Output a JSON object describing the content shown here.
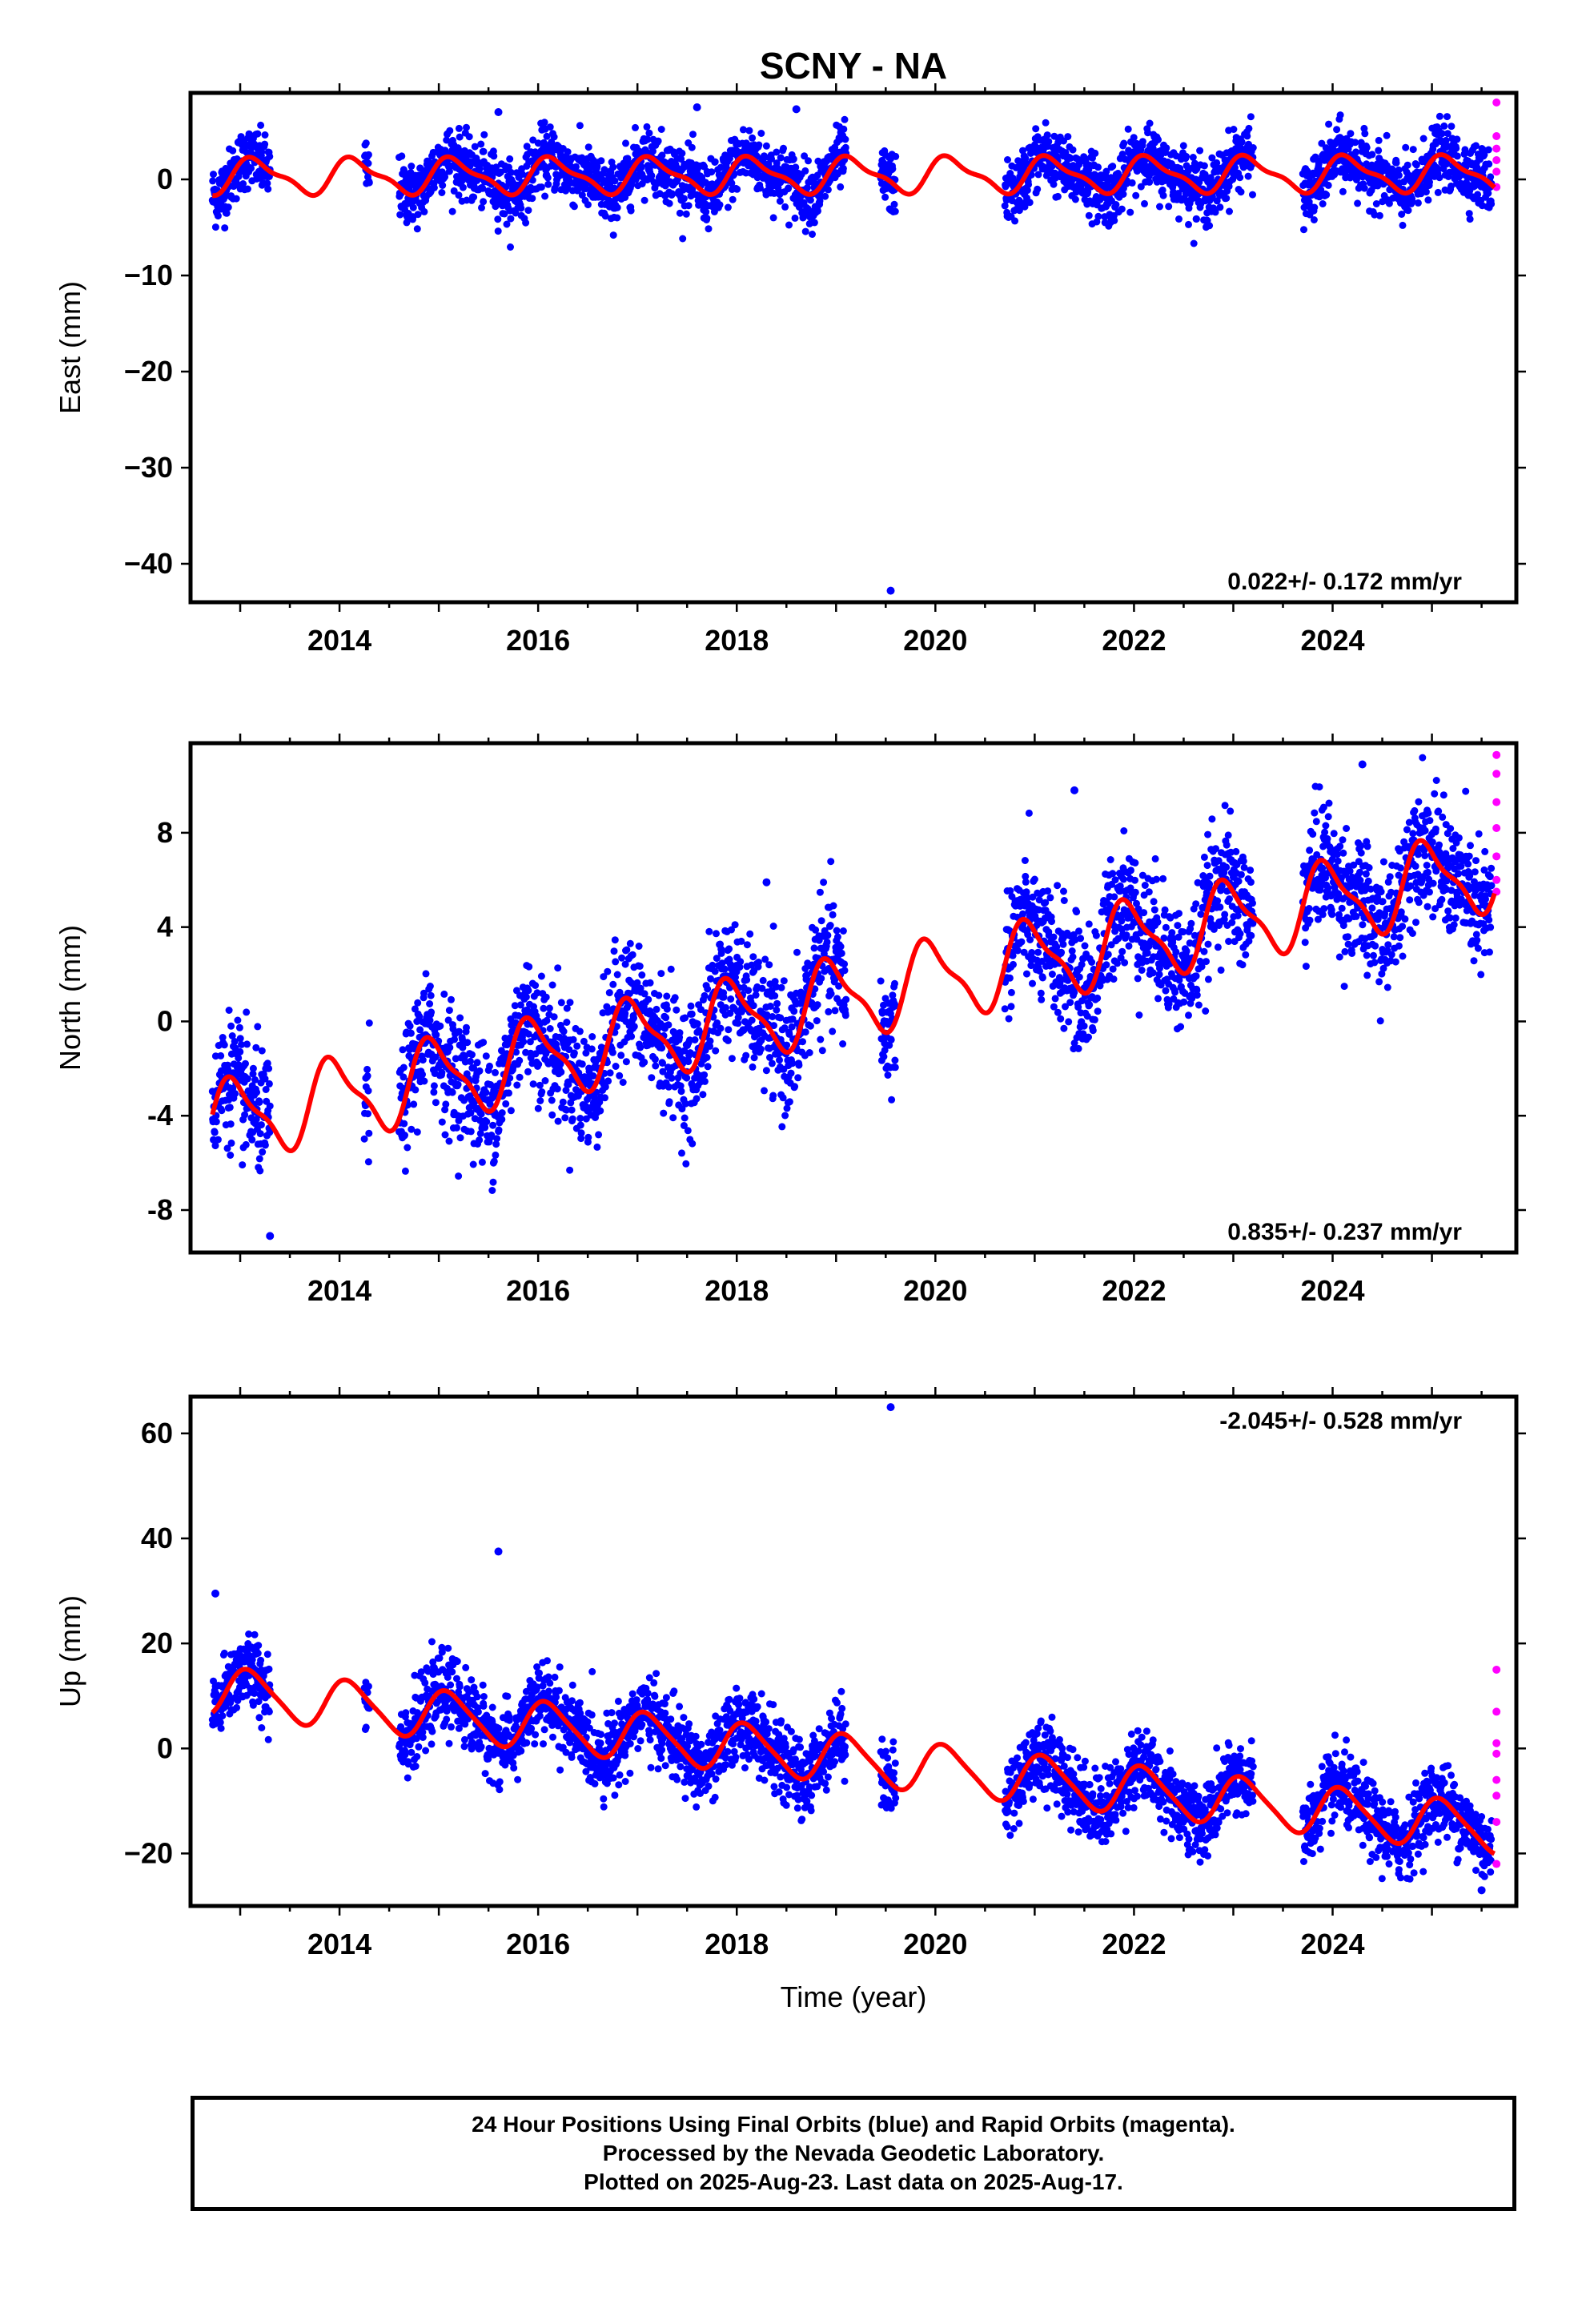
{
  "title": "SCNY - NA",
  "chart_data": [
    {
      "type": "scatter",
      "ylabel": "East (mm)",
      "xlabel": "",
      "xlim": [
        2012.5,
        2025.85
      ],
      "ylim": [
        -44,
        9
      ],
      "xticks": [
        2014,
        2016,
        2018,
        2020,
        2022,
        2024
      ],
      "xtick_labels": [
        "2014",
        "2016",
        "2018",
        "2020",
        "2022",
        "2024"
      ],
      "yticks": [
        0,
        -10,
        -20,
        -30,
        -40
      ],
      "ytick_labels": [
        "0",
        "−10",
        "−20",
        "−30",
        "−40"
      ],
      "rate_label": "0.022+/- 0.172 mm/yr",
      "rate_position": "bottom-right",
      "model": {
        "mean": 0.3,
        "trend": 0.022,
        "annual": 1.7,
        "semiannual": 0.6,
        "phase": 0.55
      },
      "noise": 1.6,
      "data_segments": [
        [
          2012.72,
          2013.3
        ],
        [
          2014.25,
          2014.3
        ],
        [
          2014.6,
          2019.1
        ],
        [
          2019.45,
          2019.6
        ],
        [
          2020.7,
          2023.2
        ],
        [
          2023.7,
          2025.6
        ]
      ],
      "outliers": [
        [
          2019.55,
          -42.8
        ],
        [
          2015.6,
          7.0
        ],
        [
          2017.6,
          7.5
        ],
        [
          2018.6,
          7.3
        ]
      ],
      "rapid_orbit_points": [
        [
          2025.65,
          8
        ],
        [
          2025.65,
          4.5
        ],
        [
          2025.65,
          3.2
        ],
        [
          2025.65,
          2.0
        ],
        [
          2025.65,
          0.8
        ],
        [
          2025.65,
          -0.8
        ]
      ],
      "series": [
        {
          "name": "Final Orbits",
          "color": "#0000ff"
        },
        {
          "name": "Rapid Orbits",
          "color": "#ff00ff"
        },
        {
          "name": "model",
          "color": "#ff0000"
        }
      ]
    },
    {
      "type": "scatter",
      "ylabel": "North (mm)",
      "xlabel": "",
      "xlim": [
        2012.5,
        2025.85
      ],
      "ylim": [
        -9.8,
        11.8
      ],
      "xticks": [
        2014,
        2016,
        2018,
        2020,
        2022,
        2024
      ],
      "xtick_labels": [
        "2014",
        "2016",
        "2018",
        "2020",
        "2022",
        "2024"
      ],
      "yticks": [
        8,
        4,
        0,
        -4,
        -8
      ],
      "ytick_labels": [
        "8",
        "4",
        "0",
        "-4",
        "-8"
      ],
      "rate_label": "0.835+/- 0.237 mm/yr",
      "rate_position": "bottom-right",
      "model": {
        "mean": -4.5,
        "trend": 0.835,
        "annual": 1.6,
        "semiannual": 0.5,
        "phase": 1.9
      },
      "noise": 1.3,
      "data_segments": [
        [
          2012.72,
          2013.3
        ],
        [
          2014.25,
          2014.3
        ],
        [
          2014.6,
          2019.1
        ],
        [
          2019.45,
          2019.6
        ],
        [
          2020.7,
          2023.2
        ],
        [
          2023.7,
          2025.6
        ]
      ],
      "outliers": [
        [
          2013.3,
          -9.1
        ],
        [
          2024.3,
          10.9
        ],
        [
          2018.3,
          5.9
        ],
        [
          2021.4,
          9.8
        ]
      ],
      "rapid_orbit_points": [
        [
          2025.65,
          11.3
        ],
        [
          2025.65,
          10.5
        ],
        [
          2025.65,
          9.3
        ],
        [
          2025.65,
          8.2
        ],
        [
          2025.65,
          7.0
        ],
        [
          2025.65,
          6.0
        ],
        [
          2025.65,
          5.5
        ]
      ],
      "series": [
        {
          "name": "Final Orbits",
          "color": "#0000ff"
        },
        {
          "name": "Rapid Orbits",
          "color": "#ff00ff"
        },
        {
          "name": "model",
          "color": "#ff0000"
        }
      ]
    },
    {
      "type": "scatter",
      "ylabel": "Up (mm)",
      "xlabel": "Time (year)",
      "xlim": [
        2012.5,
        2025.85
      ],
      "ylim": [
        -30,
        67
      ],
      "xticks": [
        2014,
        2016,
        2018,
        2020,
        2022,
        2024
      ],
      "xtick_labels": [
        "2014",
        "2016",
        "2018",
        "2020",
        "2022",
        "2024"
      ],
      "yticks": [
        60,
        40,
        20,
        0,
        -20
      ],
      "ytick_labels": [
        "60",
        "40",
        "20",
        "0",
        "−20"
      ],
      "rate_label": "-2.045+/- 0.528 mm/yr",
      "rate_position": "top-right",
      "model": {
        "mean": 11.5,
        "trend": -2.045,
        "annual": 4.5,
        "semiannual": 0.8,
        "phase": 0.9
      },
      "noise": 3.5,
      "data_segments": [
        [
          2012.72,
          2013.3
        ],
        [
          2014.25,
          2014.3
        ],
        [
          2014.6,
          2019.1
        ],
        [
          2019.45,
          2019.6
        ],
        [
          2020.7,
          2023.2
        ],
        [
          2023.7,
          2025.6
        ]
      ],
      "outliers": [
        [
          2019.55,
          65.0
        ],
        [
          2015.6,
          37.5
        ],
        [
          2012.75,
          29.5
        ],
        [
          2025.5,
          -27.0
        ]
      ],
      "rapid_orbit_points": [
        [
          2025.65,
          15
        ],
        [
          2025.65,
          7
        ],
        [
          2025.65,
          1
        ],
        [
          2025.65,
          -1
        ],
        [
          2025.65,
          -6
        ],
        [
          2025.65,
          -9
        ],
        [
          2025.65,
          -14
        ],
        [
          2025.65,
          -22
        ]
      ],
      "series": [
        {
          "name": "Final Orbits",
          "color": "#0000ff"
        },
        {
          "name": "Rapid Orbits",
          "color": "#ff00ff"
        },
        {
          "name": "model",
          "color": "#ff0000"
        }
      ]
    }
  ],
  "footer": {
    "line1": "24 Hour Positions Using Final Orbits (blue) and Rapid Orbits (magenta).",
    "line2": "Processed by the Nevada Geodetic Laboratory.",
    "line3": "Plotted on 2025-Aug-23. Last data on 2025-Aug-17."
  }
}
